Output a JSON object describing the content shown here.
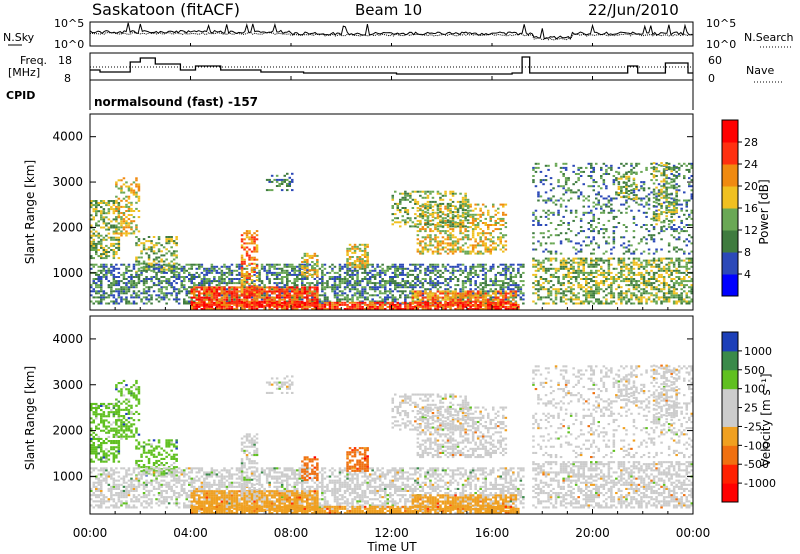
{
  "header": {
    "station": "Saskatoon (fitACF)",
    "beam": "Beam 10",
    "date": "22/Jun/2010"
  },
  "noise_panel": {
    "left_label": "N.Sky",
    "right_label": "N.Search",
    "left_ticks": [
      "10^5",
      "10^0"
    ],
    "right_ticks": [
      "10^5",
      "10^0"
    ]
  },
  "freq_panel": {
    "left_label_1": "Freq.",
    "left_label_2": "[MHz]",
    "right_label": "Nave",
    "left_ticks": [
      "18",
      "8"
    ],
    "right_ticks": [
      "60",
      "0"
    ]
  },
  "cpid_panel": {
    "label": "CPID",
    "mode": "normalsound (fast) -157"
  },
  "chart_data": [
    {
      "type": "heatmap",
      "title": "",
      "xlabel": "",
      "ylabel": "Slant Range [km]",
      "ylim": [
        180,
        4500
      ],
      "y_ticks": [
        "1000",
        "2000",
        "3000",
        "4000"
      ],
      "colorbar_label": "Power [dB]",
      "colorbar_ticks": [
        "4",
        "8",
        "12",
        "16",
        "20",
        "24",
        "28"
      ],
      "colorbar_colors": [
        "#0000ff",
        "#2c49b8",
        "#3f7b3f",
        "#6aa855",
        "#f0c020",
        "#f08a10",
        "#ff3010",
        "#ff0000"
      ]
    },
    {
      "type": "heatmap",
      "title": "",
      "xlabel": "Time UT",
      "ylabel": "Slant Range [km]",
      "ylim": [
        180,
        4500
      ],
      "y_ticks": [
        "1000",
        "2000",
        "3000",
        "4000"
      ],
      "colorbar_label": "Velocity [m s⁻¹]",
      "colorbar_ticks": [
        "1000",
        "500",
        "100",
        "25",
        "-25",
        "-100",
        "-500",
        "-1000"
      ],
      "colorbar_colors": [
        "#1c3fb8",
        "#3a8a4a",
        "#60c020",
        "#cccccc",
        "#cccccc",
        "#f0a020",
        "#f07010",
        "#ff2000",
        "#ff0000"
      ]
    }
  ],
  "x_axis": {
    "label": "Time UT",
    "ticks": [
      "00:00",
      "04:00",
      "08:00",
      "12:00",
      "16:00",
      "20:00",
      "00:00"
    ]
  }
}
